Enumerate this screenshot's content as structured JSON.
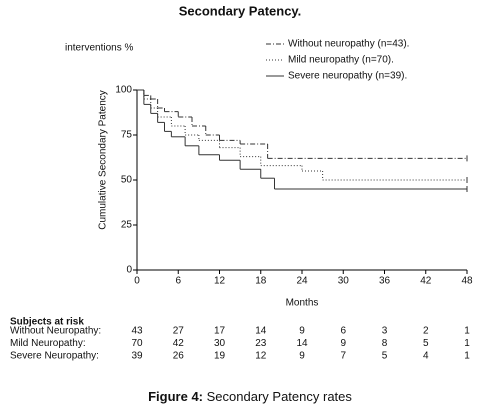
{
  "chart_data": {
    "type": "step",
    "title": "Secondary Patency.",
    "y_unit_label": "interventions %",
    "ylabel": "Cumulative Secondary Patency",
    "xlabel": "Months",
    "xlim": [
      0,
      48
    ],
    "xticks": [
      0,
      6,
      12,
      18,
      24,
      30,
      36,
      42,
      48
    ],
    "ylim": [
      0,
      100
    ],
    "yticks": [
      0,
      25,
      50,
      75,
      100
    ],
    "legend": "top-right",
    "series": [
      {
        "name": "Without neuropathy (n=43).",
        "color": "#333333",
        "dash": "5 2 1 2",
        "x": [
          0,
          1,
          2,
          3,
          4,
          6,
          8,
          10,
          12,
          15,
          19,
          48
        ],
        "values": [
          100,
          97,
          95,
          90,
          88,
          85,
          80,
          75,
          72,
          70,
          62,
          62
        ]
      },
      {
        "name": "Mild neuropathy (n=70).",
        "color": "#333333",
        "dash": "1 2",
        "x": [
          0,
          1,
          2,
          3,
          5,
          7,
          9,
          12,
          15,
          18,
          24,
          27,
          48
        ],
        "values": [
          100,
          95,
          90,
          85,
          80,
          75,
          72,
          68,
          63,
          58,
          55,
          50,
          50
        ]
      },
      {
        "name": "Severe neuropathy (n=39).",
        "color": "#333333",
        "dash": "none",
        "x": [
          0,
          1,
          2,
          3,
          4,
          5,
          7,
          9,
          12,
          15,
          18,
          20,
          48
        ],
        "values": [
          100,
          92,
          87,
          82,
          77,
          74,
          69,
          64,
          61,
          56,
          51,
          45,
          45
        ]
      }
    ]
  },
  "risk_table": {
    "title": "Subjects at risk",
    "rows": [
      {
        "label": "Without Neuropathy:",
        "values": [
          "43",
          "27",
          "17",
          "14",
          "9",
          "6",
          "3",
          "2",
          "1"
        ]
      },
      {
        "label": "Mild Neuropathy:",
        "values": [
          "70",
          "42",
          "30",
          "23",
          "14",
          "9",
          "8",
          "5",
          "1"
        ]
      },
      {
        "label": "Severe Neuropathy:",
        "values": [
          "39",
          "26",
          "19",
          "12",
          "9",
          "7",
          "5",
          "4",
          "1"
        ]
      }
    ]
  },
  "caption": {
    "label": "Figure 4:",
    "text": "Secondary Patency rates"
  }
}
